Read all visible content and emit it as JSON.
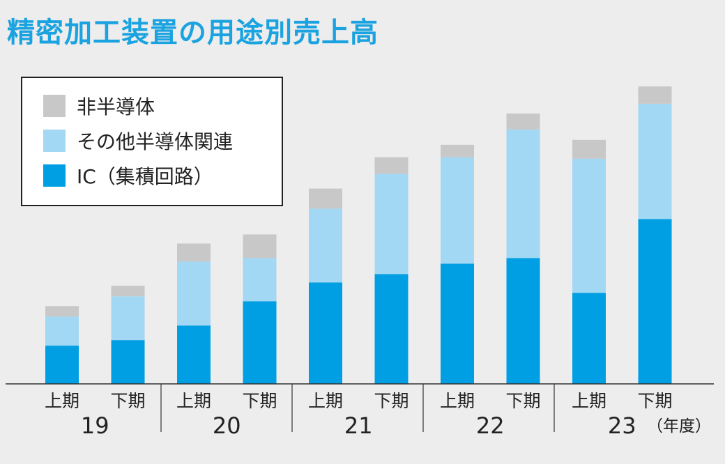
{
  "title": "精密加工装置の用途別売上高",
  "colors": {
    "title": "#1aa3e0",
    "non_semi": "#c8c8c8",
    "other_semi": "#a2d8f3",
    "ic": "#009fe3",
    "axis": "#333333"
  },
  "legend": [
    {
      "label": "非半導体",
      "color": "#c8c8c8"
    },
    {
      "label": "その他半導体関連",
      "color": "#a2d8f3"
    },
    {
      "label": "IC（集積回路）",
      "color": "#009fe3"
    }
  ],
  "chart_data": {
    "type": "bar",
    "stacked": true,
    "title": "精密加工装置の用途別売上高",
    "categories": [
      "上期",
      "下期",
      "上期",
      "下期",
      "上期",
      "下期",
      "上期",
      "下期",
      "上期",
      "下期"
    ],
    "groups": [
      "19",
      "20",
      "21",
      "22",
      "23"
    ],
    "x_unit_label": "（年度）",
    "series": [
      {
        "name": "IC（集積回路）",
        "values": [
          55,
          63,
          84,
          119,
          146,
          158,
          173,
          181,
          131,
          237
        ]
      },
      {
        "name": "その他半導体関連",
        "values": [
          42,
          63,
          92,
          62,
          106,
          144,
          153,
          185,
          193,
          166
        ]
      },
      {
        "name": "非半導体",
        "values": [
          15,
          15,
          26,
          34,
          29,
          24,
          18,
          23,
          27,
          25
        ]
      }
    ],
    "ylim": [
      0,
      440
    ],
    "grid": false,
    "legend_position": "top-left"
  }
}
